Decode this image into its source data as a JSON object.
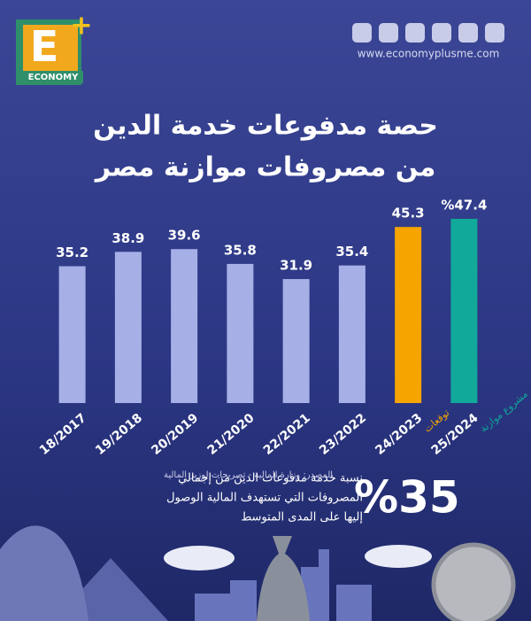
{
  "header": {
    "logo_letter": "E",
    "logo_plus": "+",
    "logo_brand": "ECONOMY",
    "website": "www.economyplusme.com"
  },
  "chart_data": {
    "type": "bar",
    "title": [
      "حصة مدفوعات خدمة الدين",
      "من مصروفات موازنة مصر"
    ],
    "categories": [
      "18/2017",
      "19/2018",
      "20/2019",
      "21/2020",
      "22/2021",
      "23/2022",
      "24/2023",
      "25/2024"
    ],
    "values": [
      35.2,
      38.9,
      39.6,
      35.8,
      31.9,
      35.4,
      45.3,
      47.4
    ],
    "value_labels": [
      "35.2",
      "38.9",
      "39.6",
      "35.8",
      "31.9",
      "35.4",
      "45.3",
      "%47.4"
    ],
    "colors": [
      "#a7b0e6",
      "#a7b0e6",
      "#a7b0e6",
      "#a7b0e6",
      "#a7b0e6",
      "#a7b0e6",
      "#f6a400",
      "#10a99a"
    ],
    "category_notes": [
      null,
      null,
      null,
      null,
      null,
      null,
      "توقعات",
      "مشروع موازنة"
    ]
  },
  "footer": {
    "source": "المصدر: وزارة المالية - تصريحات لوزير المالية",
    "stat": "%35",
    "stat_text": [
      "نسبة خدمة مدفوعات الدين من إجمالي",
      "المصروفات التي تستهدف المالية الوصول",
      "إليها على المدى المتوسط"
    ]
  }
}
